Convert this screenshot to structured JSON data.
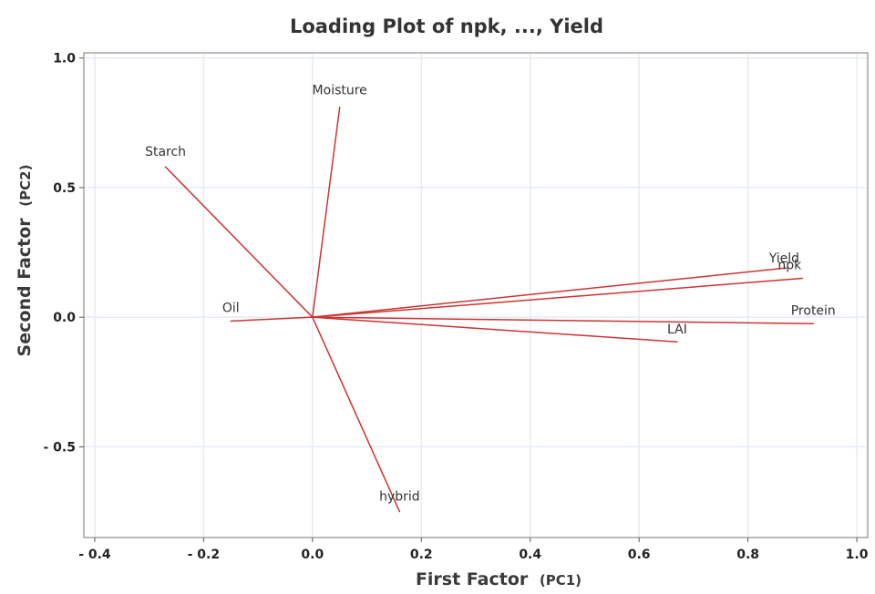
{
  "chart_data": {
    "type": "scatter",
    "title": "Loading Plot of npk, ..., Yield",
    "xlabel": "First Factor",
    "xlabel_suffix": "(PC1)",
    "ylabel": "Second Factor",
    "ylabel_suffix": "(PC2)",
    "xlim": [
      -0.42,
      1.02
    ],
    "ylim": [
      -0.85,
      1.02
    ],
    "x_ticks": [
      -0.4,
      -0.2,
      0.0,
      0.2,
      0.4,
      0.6,
      0.8,
      1.0
    ],
    "x_tick_labels": [
      "- 0.4",
      "- 0.2",
      "0.0",
      "0.2",
      "0.4",
      "0.6",
      "0.8",
      "1.0"
    ],
    "y_ticks": [
      -0.5,
      0.0,
      0.5,
      1.0
    ],
    "y_tick_labels": [
      "- 0.5",
      "0.0",
      "0.5",
      "1.0"
    ],
    "grid": true,
    "line_color": "#cc3333",
    "grid_color": "#e6ecf3",
    "variables": [
      {
        "name": "Moisture",
        "x": 0.05,
        "y": 0.81,
        "label_anchor": "middle",
        "label_pos": "above"
      },
      {
        "name": "Starch",
        "x": -0.27,
        "y": 0.58,
        "label_anchor": "middle",
        "label_pos": "above"
      },
      {
        "name": "Yield",
        "x": 0.87,
        "y": 0.19,
        "label_anchor": "middle",
        "label_pos": "above"
      },
      {
        "name": "npk",
        "x": 0.9,
        "y": 0.15,
        "label_anchor": "middle",
        "label_pos": "above"
      },
      {
        "name": "Oil",
        "x": -0.15,
        "y": -0.015,
        "label_anchor": "middle",
        "label_pos": "above"
      },
      {
        "name": "Protein",
        "x": 0.92,
        "y": -0.025,
        "label_anchor": "middle",
        "label_pos": "above"
      },
      {
        "name": "LAI",
        "x": 0.67,
        "y": -0.095,
        "label_anchor": "middle",
        "label_pos": "above"
      },
      {
        "name": "hybrid",
        "x": 0.16,
        "y": -0.75,
        "label_anchor": "middle",
        "label_pos": "above"
      }
    ]
  }
}
